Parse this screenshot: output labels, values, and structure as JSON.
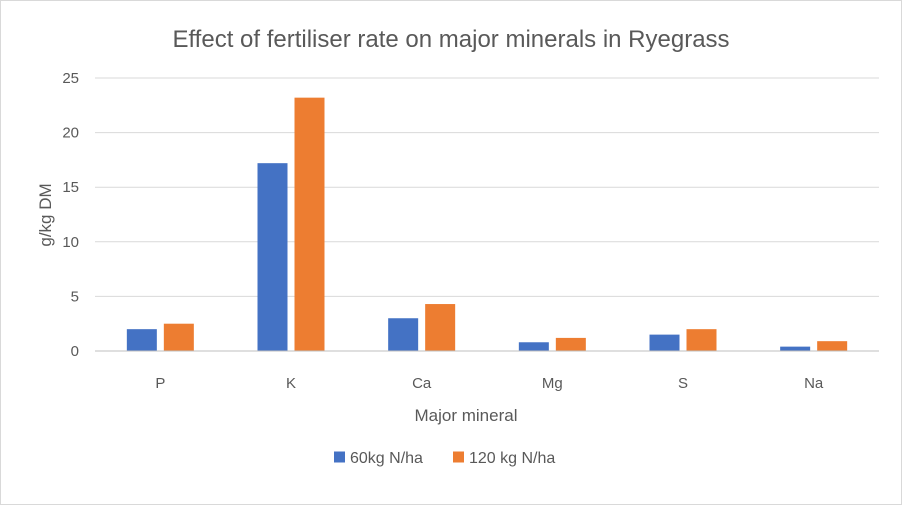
{
  "chart_data": {
    "type": "bar",
    "title": "Effect of fertiliser rate on major minerals in Ryegrass",
    "xlabel": "Major mineral",
    "ylabel": "g/kg DM",
    "categories": [
      "P",
      "K",
      "Ca",
      "Mg",
      "S",
      "Na"
    ],
    "series": [
      {
        "name": "60kg N/ha",
        "color": "#4472C4",
        "values": [
          2.0,
          17.2,
          3.0,
          0.8,
          1.5,
          0.4
        ]
      },
      {
        "name": "120 kg N/ha",
        "color": "#ED7D31",
        "values": [
          2.5,
          23.2,
          4.3,
          1.2,
          2.0,
          0.9
        ]
      }
    ],
    "ylim": [
      0,
      25
    ],
    "yticks": [
      0,
      5,
      10,
      15,
      20,
      25
    ],
    "grid": true,
    "legend_position": "bottom"
  }
}
